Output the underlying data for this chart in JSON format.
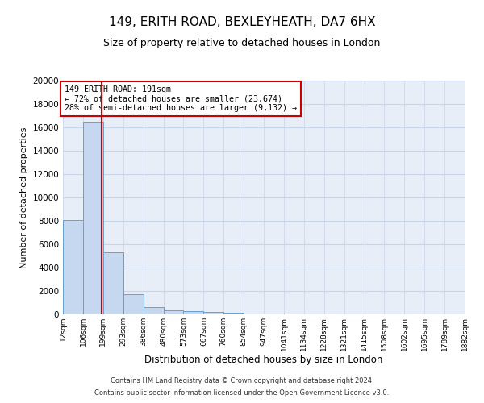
{
  "title": "149, ERITH ROAD, BEXLEYHEATH, DA7 6HX",
  "subtitle": "Size of property relative to detached houses in London",
  "xlabel": "Distribution of detached houses by size in London",
  "ylabel": "Number of detached properties",
  "footnote1": "Contains HM Land Registry data © Crown copyright and database right 2024.",
  "footnote2": "Contains public sector information licensed under the Open Government Licence v3.0.",
  "bar_edges": [
    12,
    106,
    199,
    293,
    386,
    480,
    573,
    667,
    760,
    854,
    947,
    1041,
    1134,
    1228,
    1321,
    1415,
    1508,
    1602,
    1695,
    1789,
    1882
  ],
  "bar_heights": [
    8100,
    16500,
    5300,
    1750,
    650,
    350,
    250,
    200,
    130,
    80,
    50,
    30,
    20,
    15,
    10,
    8,
    5,
    4,
    3,
    2
  ],
  "bar_color": "#c5d8f0",
  "bar_edge_color": "#6aa0cc",
  "property_size": 191,
  "property_line_color": "#cc0000",
  "annotation_text": "149 ERITH ROAD: 191sqm\n← 72% of detached houses are smaller (23,674)\n28% of semi-detached houses are larger (9,132) →",
  "annotation_box_color": "#cc0000",
  "ylim": [
    0,
    20000
  ],
  "yticks": [
    0,
    2000,
    4000,
    6000,
    8000,
    10000,
    12000,
    14000,
    16000,
    18000,
    20000
  ],
  "grid_color": "#c8d4e8",
  "bg_color": "#e8eef8",
  "title_fontsize": 11,
  "subtitle_fontsize": 9,
  "ylabel_fontsize": 8,
  "xlabel_fontsize": 8.5,
  "footnote_fontsize": 6,
  "tick_fontsize": 6.5,
  "ytick_fontsize": 7.5,
  "annot_fontsize": 7.2
}
